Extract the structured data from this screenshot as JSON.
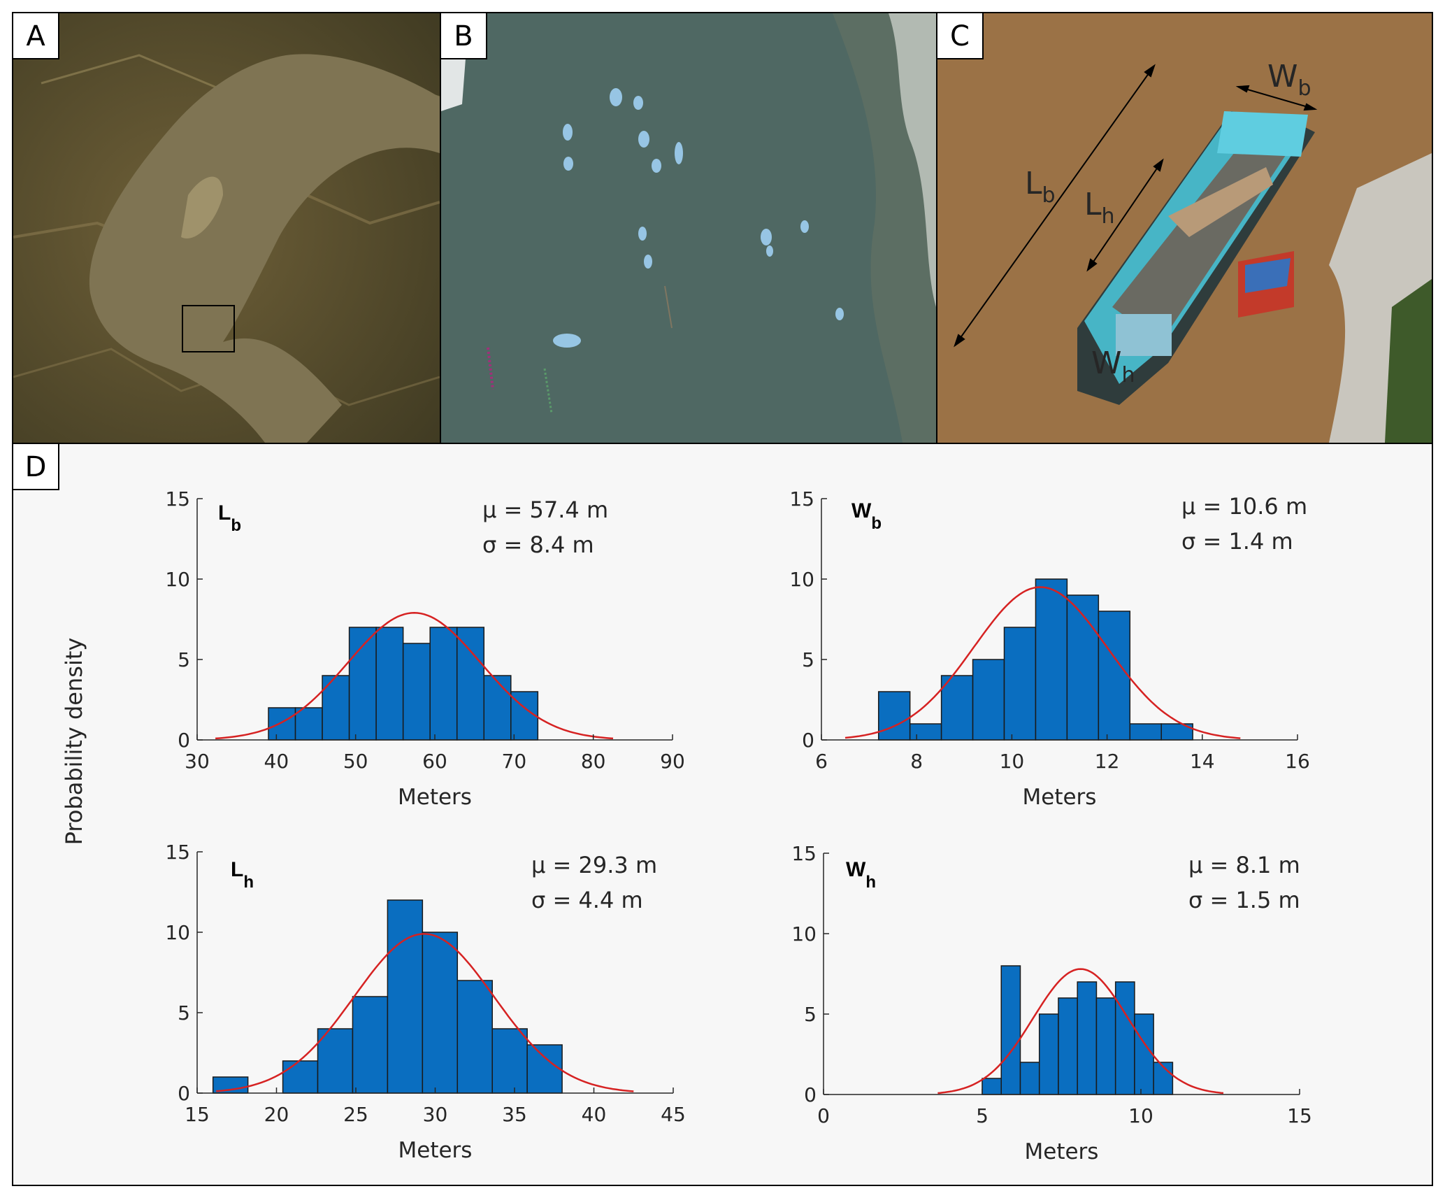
{
  "panels": {
    "a": {
      "label": "A"
    },
    "b": {
      "label": "B"
    },
    "c": {
      "label": "C",
      "annotations": {
        "lb": "L",
        "lb_sub": "b",
        "lh": "L",
        "lh_sub": "h",
        "wb": "W",
        "wb_sub": "b",
        "wh": "W",
        "wh_sub": "h"
      }
    },
    "d": {
      "label": "D"
    }
  },
  "ylabel_shared": "Probability density",
  "colors": {
    "bar": "#0a6ec0",
    "curve": "#d62222",
    "axis": "#262626"
  },
  "chart_data": [
    {
      "type": "bar",
      "id": "lb",
      "label_main": "L",
      "label_sub": "b",
      "stats": {
        "mu": "μ = 57.4 m",
        "sigma": "σ = 8.4 m"
      },
      "mean": 57.4,
      "sd": 8.4,
      "xlabel": "Meters",
      "xlim": [
        30,
        90
      ],
      "ylim": [
        0,
        15
      ],
      "xticks": [
        30,
        40,
        50,
        60,
        70,
        80,
        90
      ],
      "yticks": [
        0,
        5,
        10,
        15
      ],
      "bin_edges": [
        39,
        42.4,
        45.8,
        49.2,
        52.6,
        56,
        59.4,
        62.8,
        66.2,
        69.6,
        73
      ],
      "values": [
        2,
        2,
        4,
        7,
        7,
        6,
        7,
        7,
        4,
        3
      ],
      "curve_peak": 7.9,
      "curve_range": [
        32.3,
        82.5
      ]
    },
    {
      "type": "bar",
      "id": "wb",
      "label_main": "W",
      "label_sub": "b",
      "stats": {
        "mu": "μ = 10.6 m",
        "sigma": "σ = 1.4 m"
      },
      "mean": 10.6,
      "sd": 1.4,
      "xlabel": "Meters",
      "xlim": [
        6,
        16
      ],
      "ylim": [
        0,
        15
      ],
      "xticks": [
        6,
        8,
        10,
        12,
        14,
        16
      ],
      "yticks": [
        0,
        5,
        10,
        15
      ],
      "bin_edges": [
        7.2,
        7.86,
        8.52,
        9.18,
        9.84,
        10.5,
        11.16,
        11.82,
        12.48,
        13.14,
        13.8
      ],
      "values": [
        3,
        1,
        4,
        5,
        7,
        10,
        9,
        8,
        1,
        1
      ],
      "curve_peak": 9.5,
      "curve_range": [
        6.5,
        14.8
      ]
    },
    {
      "type": "bar",
      "id": "lh",
      "label_main": "L",
      "label_sub": "h",
      "stats": {
        "mu": "μ = 29.3 m",
        "sigma": "σ = 4.4 m"
      },
      "mean": 29.3,
      "sd": 4.4,
      "xlabel": "Meters",
      "xlim": [
        15,
        45
      ],
      "ylim": [
        0,
        15
      ],
      "xticks": [
        15,
        20,
        25,
        30,
        35,
        40,
        45
      ],
      "yticks": [
        0,
        5,
        10,
        15
      ],
      "bin_edges": [
        16,
        18.2,
        20.4,
        22.6,
        24.8,
        27,
        29.2,
        31.4,
        33.6,
        35.8,
        38
      ],
      "values": [
        1,
        0,
        2,
        4,
        6,
        12,
        10,
        7,
        4,
        3
      ],
      "curve_peak": 9.9,
      "curve_range": [
        16.2,
        42.5
      ]
    },
    {
      "type": "bar",
      "id": "wh",
      "label_main": "W",
      "label_sub": "h",
      "stats": {
        "mu": "μ = 8.1 m",
        "sigma": "σ = 1.5 m"
      },
      "mean": 8.1,
      "sd": 1.5,
      "xlabel": "Meters",
      "xlim": [
        0,
        15
      ],
      "ylim": [
        0,
        15
      ],
      "xticks": [
        0,
        5,
        10,
        15
      ],
      "yticks": [
        0,
        5,
        10,
        15
      ],
      "bin_edges": [
        5,
        5.6,
        6.2,
        6.8,
        7.4,
        8,
        8.6,
        9.2,
        9.8,
        10.4,
        11
      ],
      "values": [
        1,
        8,
        2,
        5,
        6,
        7,
        6,
        7,
        5,
        2
      ],
      "curve_peak": 7.8,
      "curve_range": [
        3.6,
        12.6
      ]
    }
  ]
}
